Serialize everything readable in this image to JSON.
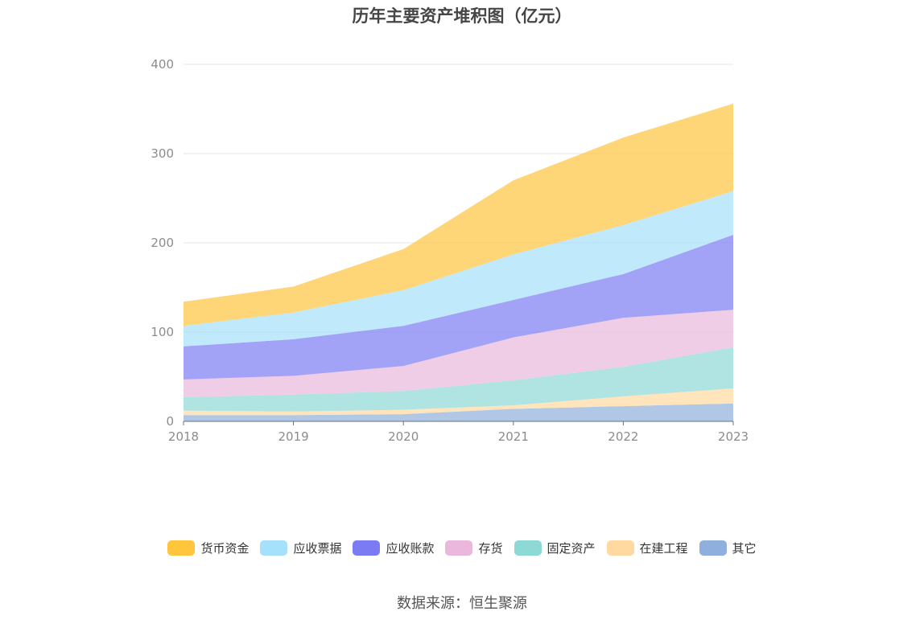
{
  "chart_data": {
    "type": "area",
    "stacked": true,
    "title": "历年主要资产堆积图（亿元）",
    "categories": [
      "2018",
      "2019",
      "2020",
      "2021",
      "2022",
      "2023"
    ],
    "ylim": [
      0,
      400
    ],
    "yticks": [
      0,
      100,
      200,
      300,
      400
    ],
    "grid": true,
    "legend_position": "bottom",
    "series": [
      {
        "name": "其它",
        "color": "#8fafdc",
        "values": [
          7,
          7,
          8,
          14,
          17,
          20
        ]
      },
      {
        "name": "在建工程",
        "color": "#ffd9a0",
        "values": [
          5,
          4,
          5,
          4,
          11,
          17
        ]
      },
      {
        "name": "固定资产",
        "color": "#8dd9d6",
        "values": [
          15,
          19,
          21,
          28,
          33,
          46
        ]
      },
      {
        "name": "存货",
        "color": "#eab8dc",
        "values": [
          20,
          21,
          28,
          48,
          55,
          42
        ]
      },
      {
        "name": "应收账款",
        "color": "#7b7cf4",
        "values": [
          37,
          41,
          45,
          42,
          49,
          84
        ]
      },
      {
        "name": "应收票据",
        "color": "#a5e1fa",
        "values": [
          23,
          30,
          40,
          51,
          55,
          49
        ]
      },
      {
        "name": "货币资金",
        "color": "#ffc53d",
        "values": [
          27,
          29,
          46,
          83,
          98,
          98
        ]
      }
    ],
    "legend_order": [
      "货币资金",
      "应收票据",
      "应收账款",
      "存货",
      "固定资产",
      "在建工程",
      "其它"
    ]
  },
  "source": "数据来源：恒生聚源"
}
